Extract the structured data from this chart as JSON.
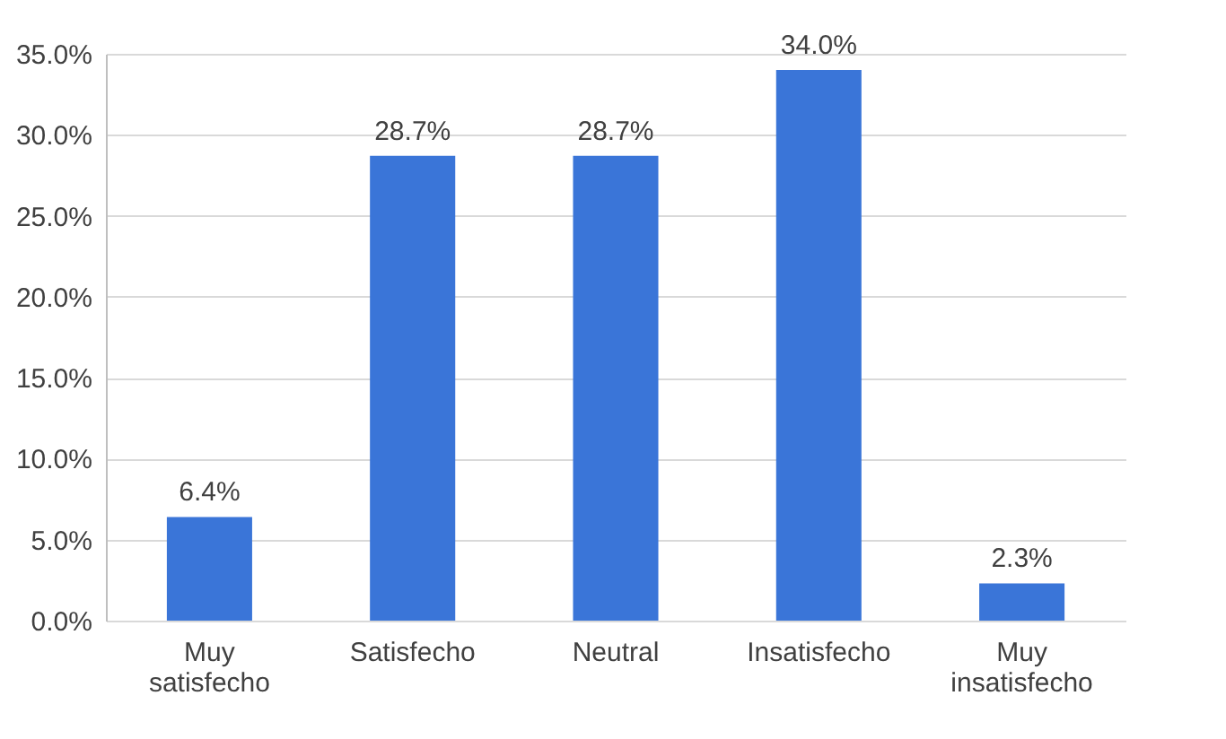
{
  "chart_data": {
    "type": "bar",
    "categories": [
      "Muy satisfecho",
      "Satisfecho",
      "Neutral",
      "Insatisfecho",
      "Muy insatisfecho"
    ],
    "values": [
      6.4,
      28.7,
      28.7,
      34.0,
      2.3
    ],
    "value_labels": [
      "6.4%",
      "28.7%",
      "28.7%",
      "34.0%",
      "2.3%"
    ],
    "color": "#3a75d8",
    "ylim": [
      0,
      35
    ],
    "yticks": [
      {
        "value": 0,
        "label": "0.0%"
      },
      {
        "value": 5,
        "label": "5.0%"
      },
      {
        "value": 10,
        "label": "10.0%"
      },
      {
        "value": 15,
        "label": "15.0%"
      },
      {
        "value": 20,
        "label": "20.0%"
      },
      {
        "value": 25,
        "label": "25.0%"
      },
      {
        "value": 30,
        "label": "30.0%"
      },
      {
        "value": 35,
        "label": "35.0%"
      }
    ],
    "grid": "y"
  }
}
